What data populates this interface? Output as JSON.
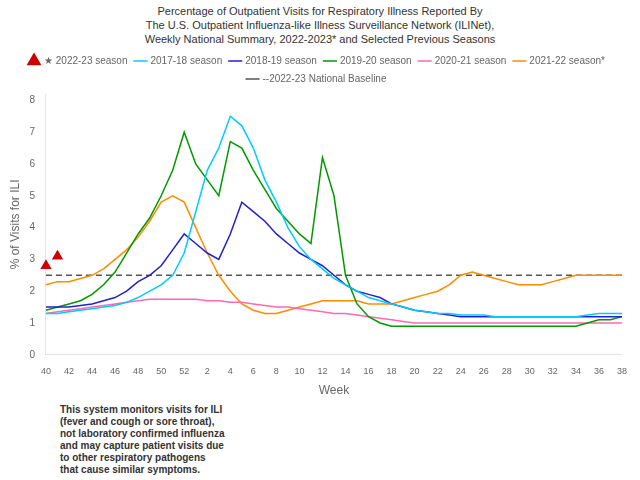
{
  "chart_data": {
    "type": "line",
    "title": "Percentage of Outpatient Visits for Respiratory Illness Reported By\nThe U.S. Outpatient Influenza-like Illness Surveillance Network (ILINet),\nWeekly National Summary, 2022-2023* and Selected Previous Seasons",
    "xlabel": "Week",
    "ylabel": "% of Visits for ILI",
    "annotation": "This system monitors visits for ILI\n(fever and cough or sore throat),\nnot laboratory confirmed influenza\nand may capture patient visits due\nto other respiratory pathogens\nthat cause similar symptoms.",
    "categories": [
      40,
      null,
      42,
      null,
      44,
      null,
      46,
      null,
      48,
      null,
      50,
      null,
      52,
      null,
      2,
      null,
      4,
      null,
      6,
      null,
      8,
      null,
      10,
      null,
      12,
      null,
      14,
      null,
      16,
      null,
      18,
      null,
      20,
      null,
      22,
      null,
      24,
      null,
      26,
      null,
      28,
      null,
      30,
      null,
      32,
      null,
      34,
      null,
      36,
      null,
      38
    ],
    "series": [
      {
        "name": "2017-18 season",
        "color": "#00CCFF",
        "line_style": "solid",
        "values": [
          1.3,
          1.3,
          1.35,
          1.4,
          1.45,
          1.5,
          1.55,
          1.65,
          1.8,
          2.0,
          2.2,
          2.5,
          3.2,
          4.5,
          5.8,
          6.5,
          7.5,
          7.2,
          6.5,
          5.5,
          4.8,
          4.0,
          3.4,
          3.0,
          2.7,
          2.4,
          2.2,
          2.0,
          1.8,
          1.7,
          1.6,
          1.5,
          1.4,
          1.35,
          1.3,
          1.3,
          1.25,
          1.25,
          1.25,
          1.2,
          1.2,
          1.2,
          1.2,
          1.2,
          1.2,
          1.2,
          1.2,
          1.25,
          1.3,
          1.3,
          1.3
        ]
      },
      {
        "name": "2018-19 season",
        "color": "#2222CC",
        "line_style": "solid",
        "values": [
          1.5,
          1.5,
          1.5,
          1.55,
          1.6,
          1.7,
          1.8,
          2.0,
          2.3,
          2.5,
          2.8,
          3.3,
          3.8,
          3.5,
          3.2,
          3.0,
          3.8,
          4.8,
          4.5,
          4.2,
          3.8,
          3.5,
          3.2,
          3.0,
          2.8,
          2.5,
          2.2,
          2.0,
          1.9,
          1.8,
          1.6,
          1.5,
          1.4,
          1.35,
          1.3,
          1.25,
          1.2,
          1.2,
          1.2,
          1.2,
          1.2,
          1.2,
          1.2,
          1.2,
          1.2,
          1.2,
          1.2,
          1.2,
          1.2,
          1.2,
          1.2
        ]
      },
      {
        "name": "2019-20 season",
        "color": "#009900",
        "line_style": "solid",
        "values": [
          1.4,
          1.5,
          1.6,
          1.7,
          1.9,
          2.2,
          2.6,
          3.2,
          3.8,
          4.3,
          5.0,
          5.8,
          7.0,
          6.0,
          5.5,
          5.0,
          6.7,
          6.5,
          5.8,
          5.2,
          4.6,
          4.2,
          3.8,
          3.5,
          6.2,
          5.0,
          2.5,
          1.6,
          1.2,
          1.0,
          0.9,
          0.9,
          0.9,
          0.9,
          0.9,
          0.9,
          0.9,
          0.9,
          0.9,
          0.9,
          0.9,
          0.9,
          0.9,
          0.9,
          0.9,
          0.9,
          0.9,
          1.0,
          1.1,
          1.1,
          1.2
        ]
      },
      {
        "name": "2020-21 season",
        "color": "#FF69B4",
        "line_style": "solid",
        "values": [
          1.3,
          1.35,
          1.4,
          1.45,
          1.5,
          1.55,
          1.6,
          1.65,
          1.7,
          1.75,
          1.75,
          1.75,
          1.75,
          1.75,
          1.7,
          1.7,
          1.65,
          1.65,
          1.6,
          1.55,
          1.5,
          1.5,
          1.45,
          1.4,
          1.35,
          1.3,
          1.3,
          1.25,
          1.2,
          1.15,
          1.1,
          1.05,
          1.0,
          1.0,
          1.0,
          1.0,
          1.0,
          1.0,
          1.0,
          1.0,
          1.0,
          1.0,
          1.0,
          1.0,
          1.0,
          1.0,
          1.0,
          1.0,
          1.0,
          1.0,
          1.0
        ]
      },
      {
        "name": "2021-22 season*",
        "color": "#FF8C00",
        "line_style": "solid",
        "values": [
          2.2,
          2.3,
          2.3,
          2.4,
          2.5,
          2.7,
          3.0,
          3.3,
          3.7,
          4.2,
          4.8,
          5.0,
          4.8,
          4.0,
          3.2,
          2.5,
          2.0,
          1.6,
          1.4,
          1.3,
          1.3,
          1.4,
          1.5,
          1.6,
          1.7,
          1.7,
          1.7,
          1.7,
          1.6,
          1.6,
          1.6,
          1.7,
          1.8,
          1.9,
          2.0,
          2.2,
          2.5,
          2.6,
          2.5,
          2.4,
          2.3,
          2.2,
          2.2,
          2.2,
          2.3,
          2.4,
          2.5,
          2.5,
          2.5,
          2.5,
          2.5
        ]
      },
      {
        "name": "★ 2022-23 season",
        "color": "#CC0000",
        "marker": "triangle",
        "line_style": "none",
        "values": [
          2.8,
          3.1,
          null,
          null,
          null,
          null,
          null,
          null,
          null,
          null,
          null,
          null,
          null,
          null,
          null,
          null,
          null,
          null,
          null,
          null,
          null,
          null,
          null,
          null,
          null,
          null,
          null,
          null,
          null,
          null,
          null,
          null,
          null,
          null,
          null,
          null,
          null,
          null,
          null,
          null,
          null,
          null,
          null,
          null,
          null,
          null,
          null,
          null,
          null,
          null,
          null
        ]
      },
      {
        "name": "--2022-23 National Baseline",
        "color": "#555555",
        "line_style": "dashed",
        "values": [
          2.5,
          2.5,
          2.5,
          2.5,
          2.5,
          2.5,
          2.5,
          2.5,
          2.5,
          2.5,
          2.5,
          2.5,
          2.5,
          2.5,
          2.5,
          2.5,
          2.5,
          2.5,
          2.5,
          2.5,
          2.5,
          2.5,
          2.5,
          2.5,
          2.5,
          2.5,
          2.5,
          2.5,
          2.5,
          2.5,
          2.5,
          2.5,
          2.5,
          2.5,
          2.5,
          2.5,
          2.5,
          2.5,
          2.5,
          2.5,
          2.5,
          2.5,
          2.5,
          2.5,
          2.5,
          2.5,
          2.5,
          2.5,
          2.5,
          2.5,
          2.5
        ]
      }
    ],
    "ylim": [
      0,
      8.2
    ],
    "yticks": [
      0,
      1,
      2,
      3,
      4,
      5,
      6,
      7,
      8
    ],
    "grid": false,
    "legend": "top"
  }
}
